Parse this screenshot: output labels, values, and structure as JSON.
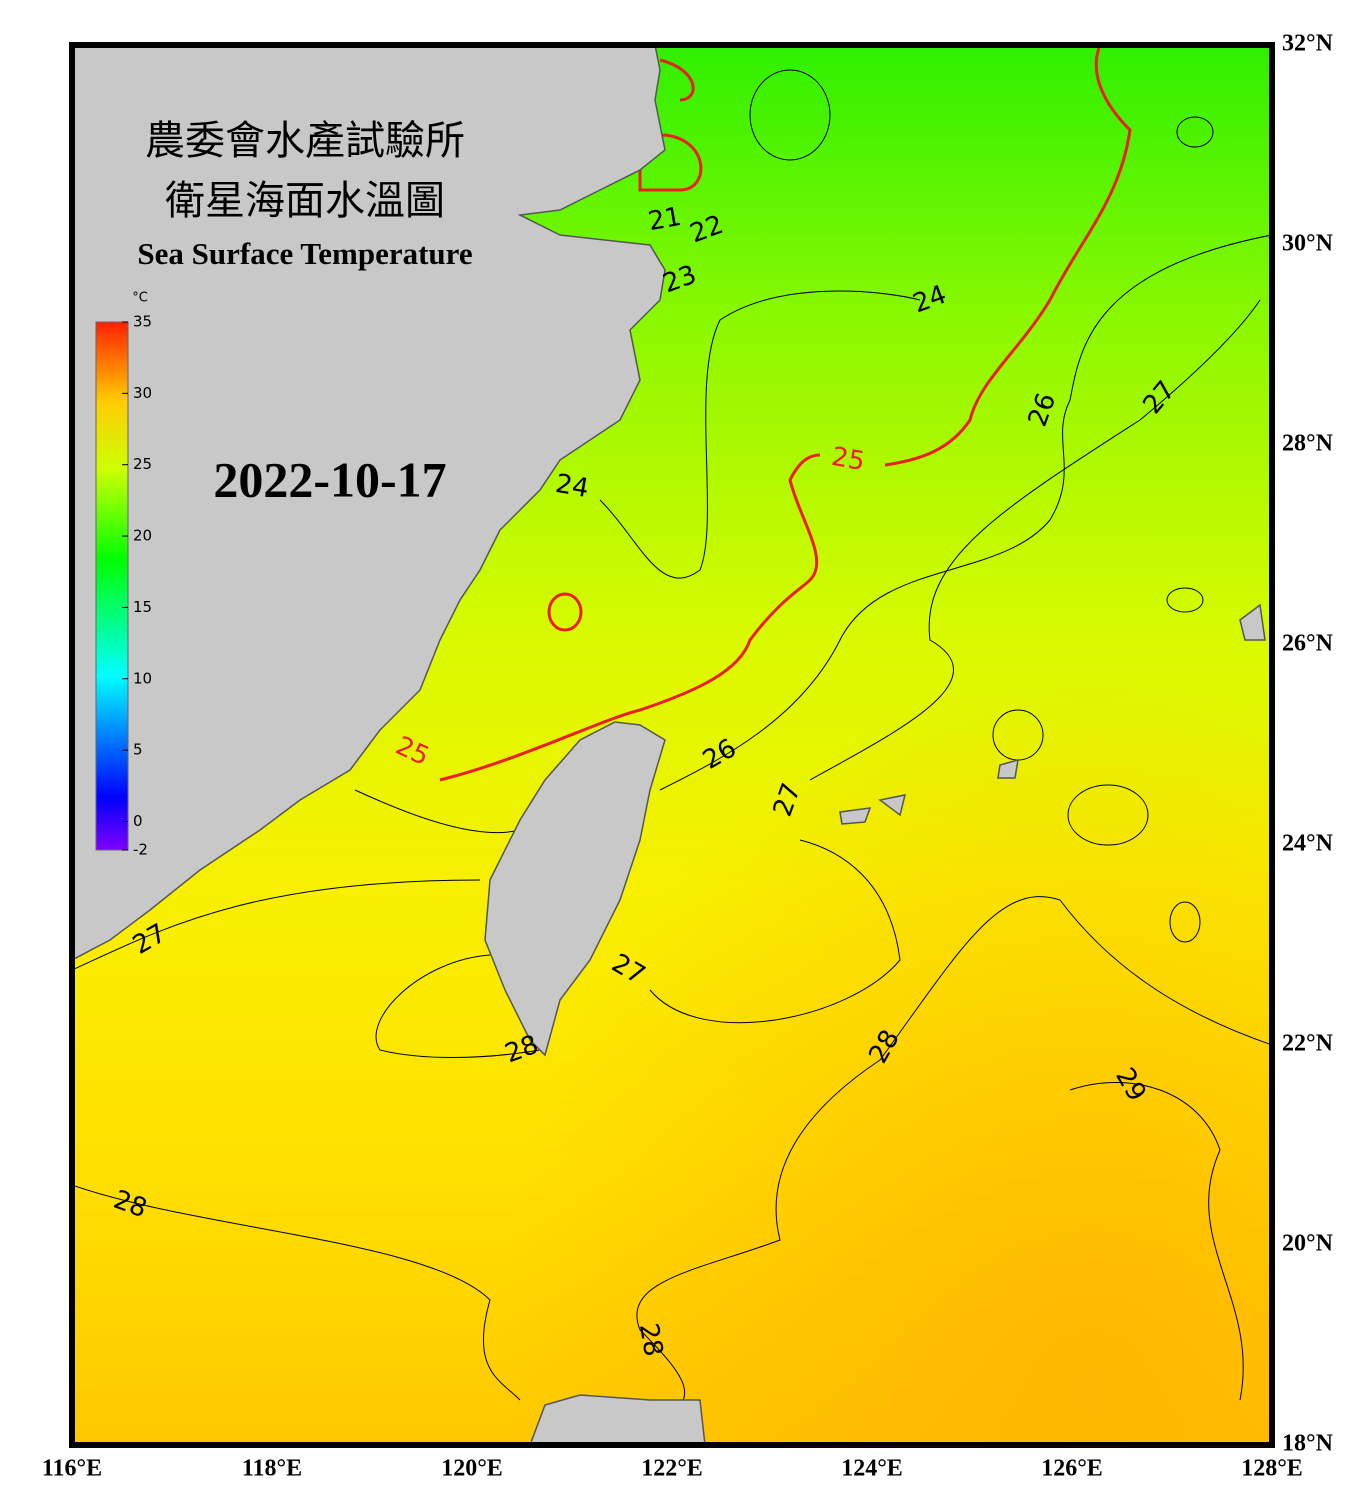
{
  "map": {
    "title_zh_1": "農委會水產試驗所",
    "title_zh_2": "衛星海面水溫圖",
    "title_en": "Sea Surface Temperature",
    "date": "2022-10-17",
    "colorbar": {
      "unit": "°C",
      "lim": [
        -2,
        35
      ],
      "ticks": [
        35,
        30,
        25,
        20,
        15,
        10,
        5,
        0,
        -2
      ]
    },
    "lonlim": [
      116,
      128
    ],
    "latlim": [
      18,
      32
    ],
    "lon_ticks": [
      {
        "value": 116,
        "label": "116°E"
      },
      {
        "value": 118,
        "label": "118°E"
      },
      {
        "value": 120,
        "label": "120°E"
      },
      {
        "value": 122,
        "label": "122°E"
      },
      {
        "value": 124,
        "label": "124°E"
      },
      {
        "value": 126,
        "label": "126°E"
      },
      {
        "value": 128,
        "label": "128°E"
      }
    ],
    "lat_ticks": [
      {
        "value": 32,
        "label": "32°N"
      },
      {
        "value": 30,
        "label": "30°N"
      },
      {
        "value": 28,
        "label": "28°N"
      },
      {
        "value": 26,
        "label": "26°N"
      },
      {
        "value": 24,
        "label": "24°N"
      },
      {
        "value": 22,
        "label": "22°N"
      },
      {
        "value": 20,
        "label": "20°N"
      },
      {
        "value": 18,
        "label": "18°N"
      }
    ],
    "contour_labels": [
      {
        "text": "21"
      },
      {
        "text": "22"
      },
      {
        "text": "23"
      },
      {
        "text": "24"
      },
      {
        "text": "24"
      },
      {
        "text": "25",
        "color": "#e82020"
      },
      {
        "text": "25",
        "color": "#e82020"
      },
      {
        "text": "26"
      },
      {
        "text": "26"
      },
      {
        "text": "27"
      },
      {
        "text": "27"
      },
      {
        "text": "27"
      },
      {
        "text": "27"
      },
      {
        "text": "28"
      },
      {
        "text": "28"
      },
      {
        "text": "28"
      },
      {
        "text": "28"
      },
      {
        "text": "29"
      }
    ]
  }
}
